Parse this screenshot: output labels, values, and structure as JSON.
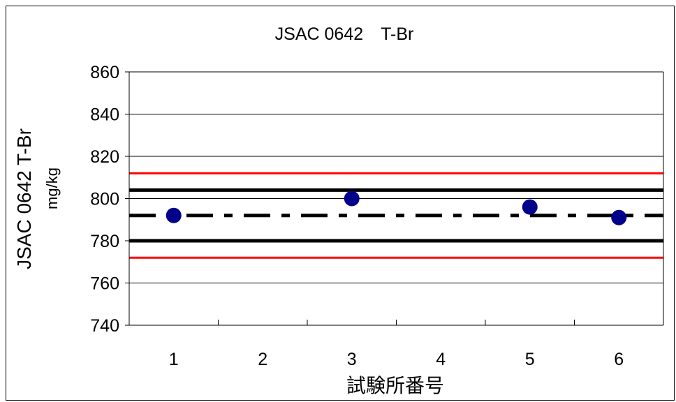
{
  "chart_data": {
    "type": "scatter",
    "title": "JSAC 0642　T-Br",
    "ylabel": "JSAC 0642 T-Br",
    "yunit": "mg/kg",
    "xlabel": "試験所番号",
    "ylim": [
      740,
      860
    ],
    "yticks": [
      740,
      760,
      780,
      800,
      820,
      840,
      860
    ],
    "categories": [
      "1",
      "2",
      "3",
      "4",
      "5",
      "6"
    ],
    "series": [
      {
        "values": [
          792,
          null,
          800,
          null,
          796,
          791
        ],
        "color": "#00008b"
      }
    ],
    "reference_lines": [
      {
        "value": 812,
        "color": "#ff0000",
        "style": "solid"
      },
      {
        "value": 804,
        "color": "#000000",
        "style": "solid-bold"
      },
      {
        "value": 792,
        "color": "#000000",
        "style": "dash-dot-bold"
      },
      {
        "value": 780,
        "color": "#000000",
        "style": "solid-bold"
      },
      {
        "value": 772,
        "color": "#ff0000",
        "style": "solid"
      }
    ],
    "grid": true,
    "legend": "none"
  }
}
